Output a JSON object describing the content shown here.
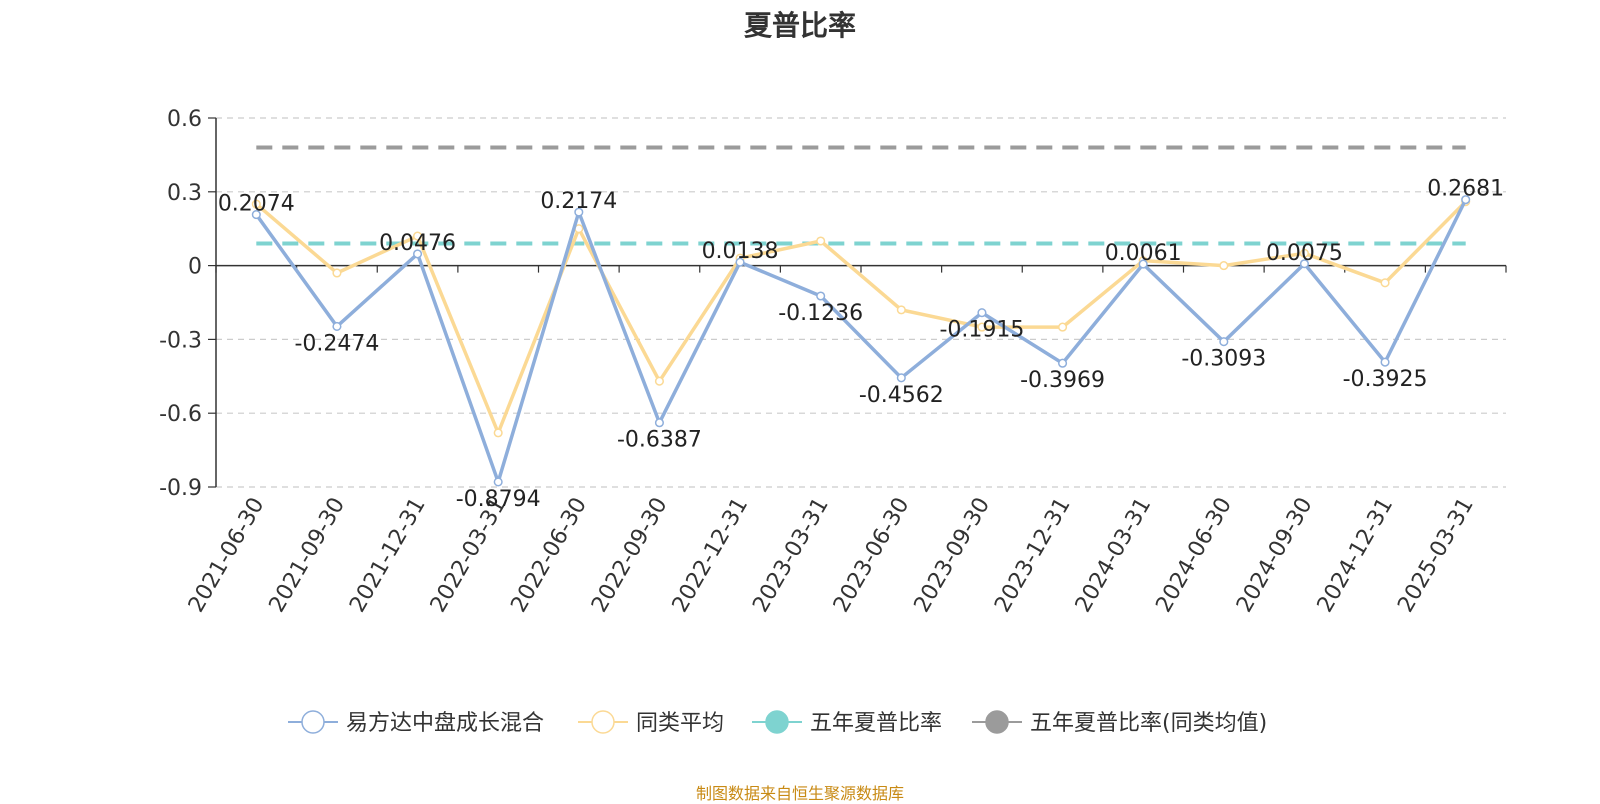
{
  "chart_data": {
    "type": "line",
    "title": "夏普比率",
    "categories": [
      "2021-06-30",
      "2021-09-30",
      "2021-12-31",
      "2022-03-31",
      "2022-06-30",
      "2022-09-30",
      "2022-12-31",
      "2023-03-31",
      "2023-06-30",
      "2023-09-30",
      "2023-12-31",
      "2024-03-31",
      "2024-06-30",
      "2024-09-30",
      "2024-12-31",
      "2025-03-31"
    ],
    "ylim": [
      -0.9,
      0.6
    ],
    "yticks": [
      0.6,
      0.3,
      0,
      -0.3,
      -0.6,
      -0.9
    ],
    "ytick_labels": [
      "0.6",
      "0.3",
      "0",
      "-0.3",
      "-0.6",
      "-0.9"
    ],
    "grid": true,
    "legend_position": "bottom",
    "series": [
      {
        "name": "易方达中盘成长混合",
        "kind": "line",
        "color": "#8eaedb",
        "show_labels": true,
        "values": [
          0.2074,
          -0.2474,
          0.0476,
          -0.8794,
          0.2174,
          -0.6387,
          0.0138,
          -0.1236,
          -0.4562,
          -0.1915,
          -0.3969,
          0.0061,
          -0.3093,
          0.0075,
          -0.3925,
          0.2681
        ],
        "labels": [
          "0.2074",
          "-0.2474",
          "0.0476",
          "-0.8794",
          "0.2174",
          "-0.6387",
          "0.0138",
          "-0.1236",
          "-0.4562",
          "-0.1915",
          "-0.3969",
          "0.0061",
          "-0.3093",
          "0.0075",
          "-0.3925",
          "0.2681"
        ]
      },
      {
        "name": "同类平均",
        "kind": "line",
        "color": "#fbd994",
        "show_labels": false,
        "values": [
          0.25,
          -0.03,
          0.12,
          -0.68,
          0.15,
          -0.47,
          0.03,
          0.1,
          -0.18,
          -0.25,
          -0.25,
          0.02,
          0.0,
          0.05,
          -0.07,
          0.26
        ]
      },
      {
        "name": "五年夏普比率",
        "kind": "hline",
        "color": "#7ed3d0",
        "value": 0.09
      },
      {
        "name": "五年夏普比率(同类均值)",
        "kind": "hline",
        "color": "#9b9b9b",
        "value": 0.48
      }
    ]
  },
  "footer": {
    "source": "制图数据来自恒生聚源数据库"
  }
}
